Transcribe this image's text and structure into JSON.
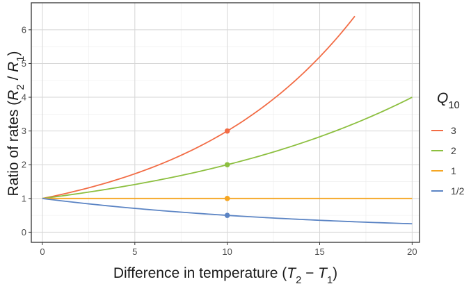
{
  "chart_data": {
    "type": "line",
    "xlabel": "Difference in temperature (T₂ − T₁)",
    "ylabel": "Ratio of rates (R₂ / R₁)",
    "xlabel_parts": [
      {
        "t": "Difference in temperature (",
        "italic": false,
        "sub": false
      },
      {
        "t": "T",
        "italic": true,
        "sub": false
      },
      {
        "t": "2",
        "italic": false,
        "sub": true
      },
      {
        "t": " − ",
        "italic": false,
        "sub": false
      },
      {
        "t": "T",
        "italic": true,
        "sub": false
      },
      {
        "t": "1",
        "italic": false,
        "sub": true
      },
      {
        "t": ")",
        "italic": false,
        "sub": false
      }
    ],
    "ylabel_parts": [
      {
        "t": "Ratio of rates (",
        "italic": false,
        "sub": false
      },
      {
        "t": "R",
        "italic": true,
        "sub": false
      },
      {
        "t": "2",
        "italic": false,
        "sub": true
      },
      {
        "t": " / ",
        "italic": false,
        "sub": false
      },
      {
        "t": "R",
        "italic": true,
        "sub": false
      },
      {
        "t": "1",
        "italic": false,
        "sub": true
      },
      {
        "t": ")",
        "italic": false,
        "sub": false
      }
    ],
    "xlim": [
      -0.6,
      20.4
    ],
    "ylim": [
      -0.3,
      6.8
    ],
    "xticks": [
      0,
      5,
      10,
      15,
      20
    ],
    "yticks": [
      0,
      1,
      2,
      3,
      4,
      5,
      6
    ],
    "grid": true,
    "legend_position": "right",
    "legend_title": "Q10",
    "legend_title_parts": [
      {
        "t": "Q",
        "italic": true,
        "sub": false
      },
      {
        "t": "10",
        "italic": false,
        "sub": true
      }
    ],
    "series": [
      {
        "name": "3",
        "color": "#f26c45",
        "q10": 3,
        "x_range": [
          0,
          16.9
        ],
        "x": [
          0,
          2.5,
          5,
          7.5,
          10,
          12.5,
          15,
          16.9
        ],
        "y": [
          1.0,
          1.316,
          1.732,
          2.28,
          3.0,
          3.948,
          5.196,
          6.42
        ],
        "marker": {
          "x": 10,
          "y": 3
        }
      },
      {
        "name": "2",
        "color": "#8cbf3f",
        "q10": 2,
        "x_range": [
          0,
          20
        ],
        "x": [
          0,
          5,
          10,
          15,
          20
        ],
        "y": [
          1.0,
          1.414,
          2.0,
          2.828,
          4.0
        ],
        "marker": {
          "x": 10,
          "y": 2
        }
      },
      {
        "name": "1",
        "color": "#f5a623",
        "q10": 1,
        "x_range": [
          0,
          20
        ],
        "x": [
          0,
          5,
          10,
          15,
          20
        ],
        "y": [
          1.0,
          1.0,
          1.0,
          1.0,
          1.0
        ],
        "marker": {
          "x": 10,
          "y": 1
        }
      },
      {
        "name": "1/2",
        "color": "#5b84c4",
        "q10": 0.5,
        "x_range": [
          0,
          20
        ],
        "x": [
          0,
          5,
          10,
          15,
          20
        ],
        "y": [
          1.0,
          0.707,
          0.5,
          0.354,
          0.25
        ],
        "marker": {
          "x": 10,
          "y": 0.5
        }
      }
    ]
  }
}
